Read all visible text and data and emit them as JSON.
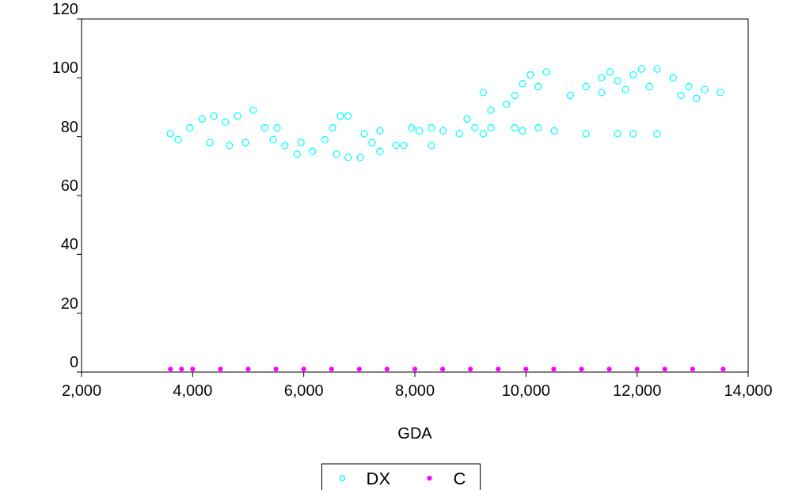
{
  "chart_data": {
    "type": "scatter",
    "xlabel": "GDA",
    "xlim": [
      2000,
      14000
    ],
    "xticks": [
      {
        "value": 2000,
        "label": "2,000"
      },
      {
        "value": 4000,
        "label": "4,000"
      },
      {
        "value": 6000,
        "label": "6,000"
      },
      {
        "value": 8000,
        "label": "8,000"
      },
      {
        "value": 10000,
        "label": "10,000"
      },
      {
        "value": 12000,
        "label": "12,000"
      },
      {
        "value": 14000,
        "label": "14,000"
      }
    ],
    "ylim": [
      0,
      120
    ],
    "yticks": [
      0,
      20,
      40,
      60,
      80,
      100,
      120
    ],
    "legend": "bottom",
    "marker": "circle",
    "grid": false,
    "series": [
      {
        "name": "DX",
        "color": "#00ffff",
        "x": [
          3600,
          3740,
          3950,
          4170,
          4380,
          4590,
          4310,
          4660,
          4950,
          5090,
          4810,
          5300,
          5450,
          5660,
          5880,
          6160,
          6380,
          6520,
          6660,
          6800,
          6590,
          6800,
          7020,
          7090,
          7230,
          7370,
          7660,
          7800,
          7940,
          8300,
          8510,
          8800,
          8940,
          9230,
          9080,
          9370,
          9650,
          9800,
          9230,
          9940,
          10080,
          10370,
          10220,
          9940,
          10510,
          11080,
          11650,
          11930,
          12360,
          10800,
          11080,
          11360,
          11510,
          11650,
          11930,
          12080,
          12360,
          12220,
          12650,
          12930,
          13220,
          13500,
          13070,
          12790,
          11790,
          11360,
          5950,
          5520,
          7370,
          8080,
          9370,
          9800,
          10220,
          8300
        ],
        "values": [
          81,
          79,
          83,
          86,
          87,
          85,
          78,
          77,
          78,
          89,
          87,
          83,
          79,
          77,
          74,
          75,
          79,
          83,
          87,
          87,
          74,
          73,
          73,
          81,
          78,
          82,
          77,
          77,
          83,
          83,
          82,
          81,
          86,
          81,
          83,
          89,
          91,
          94,
          95,
          98,
          101,
          102,
          97,
          82,
          82,
          81,
          81,
          81,
          81,
          94,
          97,
          100,
          102,
          99,
          101,
          103,
          103,
          97,
          100,
          97,
          96,
          95,
          93,
          94,
          96,
          95,
          78,
          83,
          75,
          82,
          83,
          83,
          83,
          77
        ]
      },
      {
        "name": "C",
        "color": "#ff00ff",
        "x": [
          3600,
          3800,
          4000,
          4500,
          5000,
          5500,
          6000,
          6500,
          7000,
          7500,
          8000,
          8500,
          9000,
          9500,
          10000,
          10500,
          11000,
          11500,
          12000,
          12500,
          13000,
          13550
        ],
        "values": [
          1,
          1,
          1,
          1,
          1,
          1,
          1,
          1,
          1,
          1,
          1,
          1,
          1,
          1,
          1,
          1,
          1,
          1,
          1,
          1,
          1,
          1
        ]
      }
    ]
  }
}
